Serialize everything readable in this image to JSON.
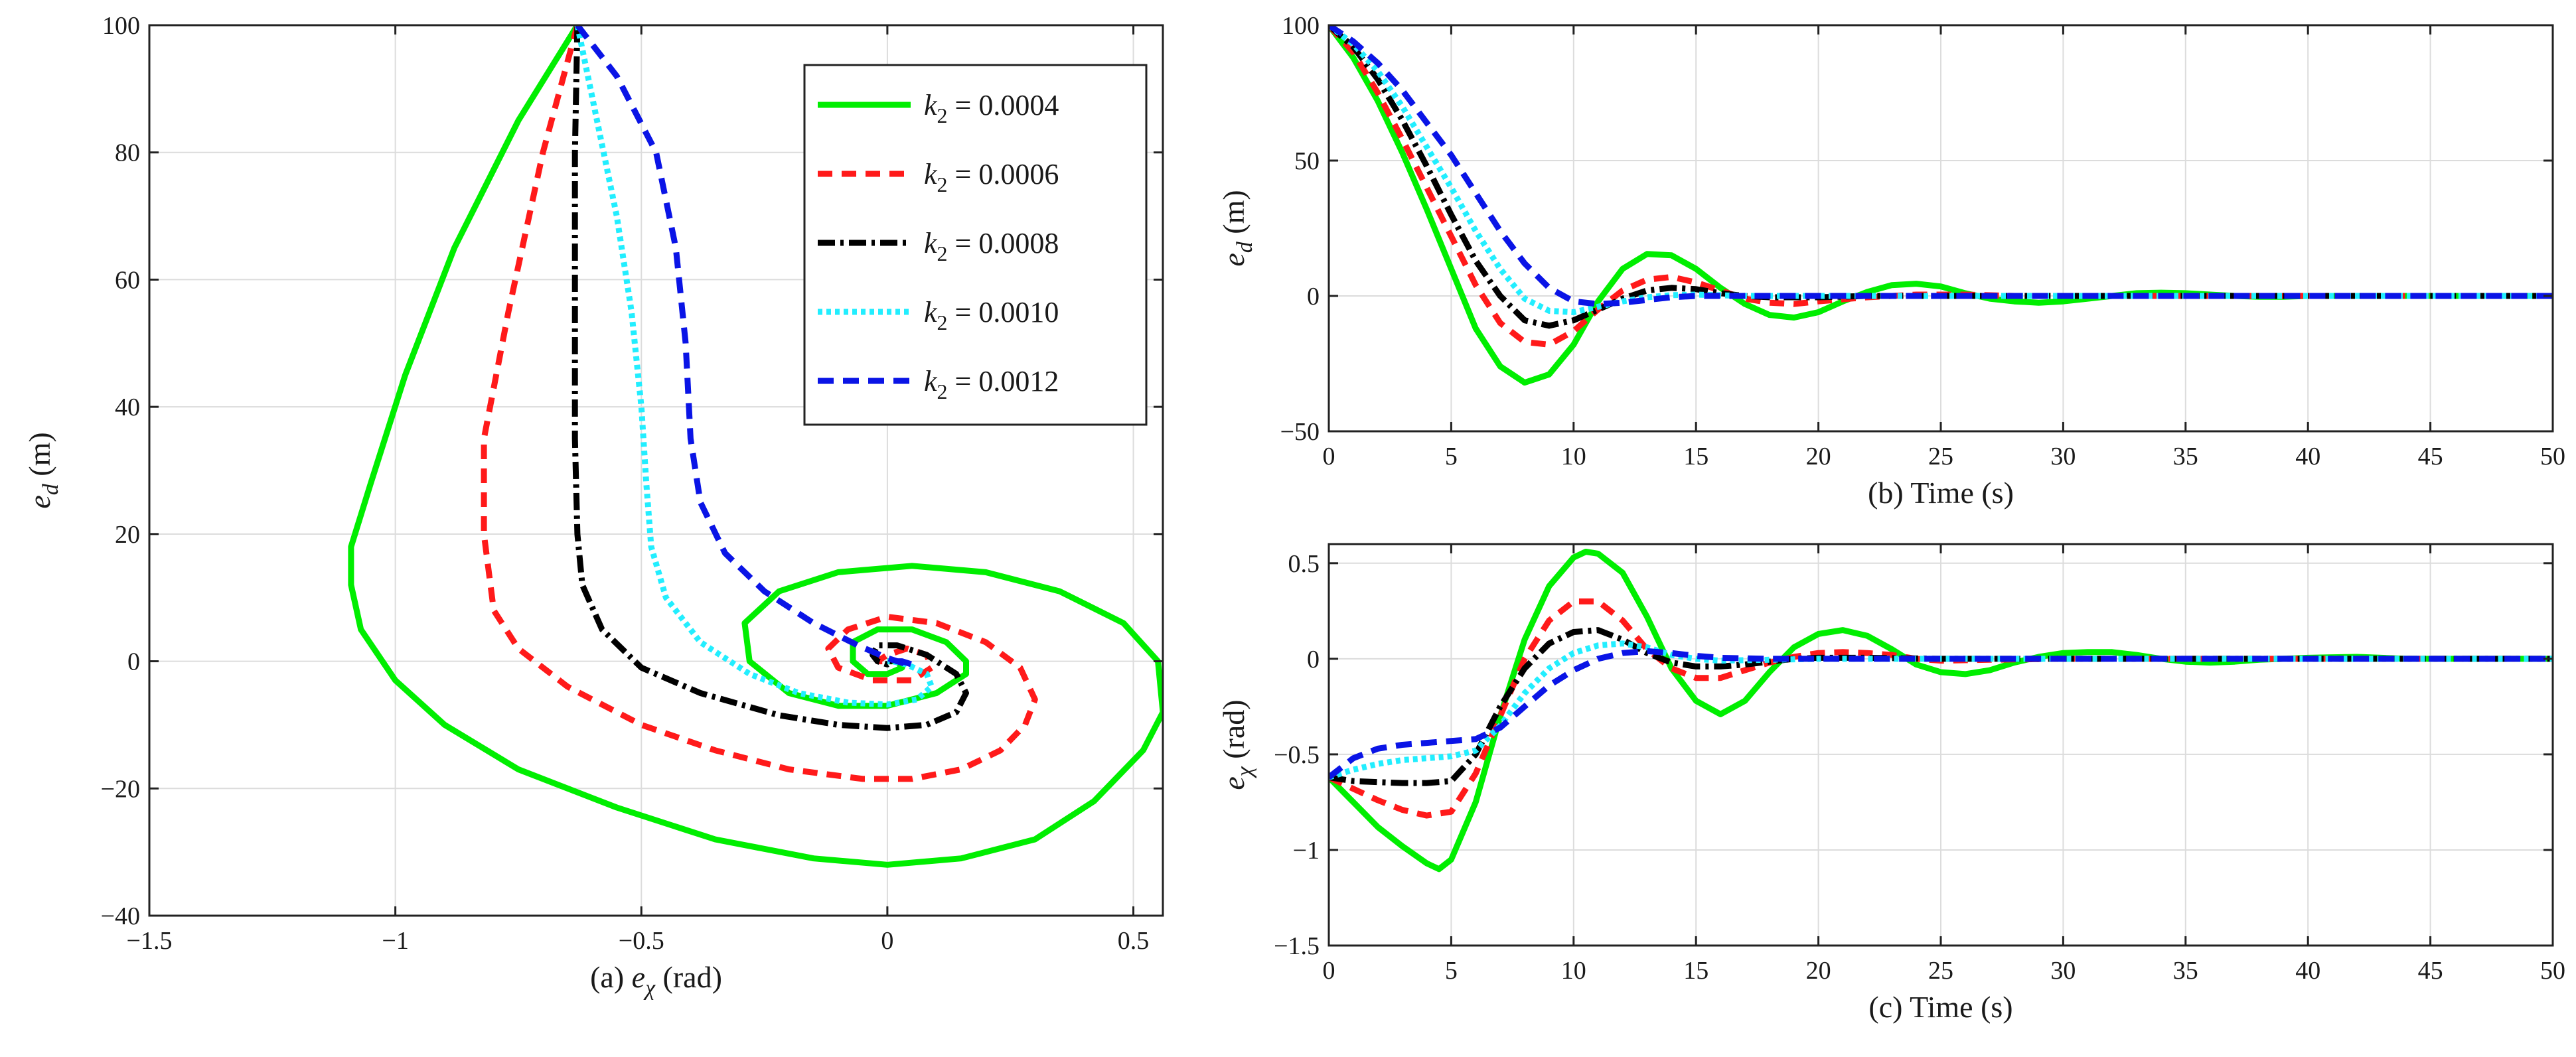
{
  "chart_data": [
    {
      "panel_id": "a",
      "type": "line",
      "caption_letter": "(a)",
      "xlabel_sym": "e",
      "xlabel_sub": "χ",
      "xlabel_unit": "(rad)",
      "ylabel_sym": "e",
      "ylabel_sub": "d",
      "ylabel_unit": "(m)",
      "xlim": [
        -1.5,
        0.56
      ],
      "ylim": [
        -40,
        100
      ],
      "x_ticks": [
        -1.5,
        -1,
        -0.5,
        0,
        0.5
      ],
      "x_tick_labels": [
        "−1.5",
        "−1",
        "−0.5",
        "0",
        "0.5"
      ],
      "y_ticks": [
        -40,
        -20,
        0,
        20,
        40,
        60,
        80,
        100
      ],
      "y_tick_labels": [
        "−40",
        "−20",
        "0",
        "20",
        "40",
        "60",
        "80",
        "100"
      ],
      "grid": true,
      "legend_position": "top-right",
      "series": [
        {
          "label": "k",
          "label_sub": "2",
          "value": "= 0.0004",
          "color": "#00ee00",
          "dash": "",
          "x": [
            -0.63,
            -0.75,
            -0.88,
            -0.98,
            -1.05,
            -1.09,
            -1.09,
            -1.07,
            -1.0,
            -0.9,
            -0.75,
            -0.55,
            -0.35,
            -0.15,
            0.0,
            0.15,
            0.3,
            0.42,
            0.52,
            0.56,
            0.55,
            0.48,
            0.35,
            0.2,
            0.05,
            -0.1,
            -0.22,
            -0.29,
            -0.28,
            -0.2,
            -0.1,
            0.0,
            0.1,
            0.16,
            0.16,
            0.12,
            0.05,
            -0.02,
            -0.07,
            -0.07,
            -0.04,
            0.0,
            0.03,
            0.02,
            0.0
          ],
          "y": [
            100,
            85,
            65,
            45,
            28,
            18,
            12,
            5,
            -3,
            -10,
            -17,
            -23,
            -28,
            -31,
            -32,
            -31,
            -28,
            -22,
            -14,
            -8,
            0,
            6,
            11,
            14,
            15,
            14,
            11,
            6,
            0,
            -5,
            -7,
            -7,
            -5,
            -2,
            0,
            3,
            5,
            5,
            3,
            0,
            -2,
            -2,
            -1,
            0,
            0
          ]
        },
        {
          "label": "k",
          "label_sub": "2",
          "value": "= 0.0006",
          "color": "#ff1a1a",
          "dash": "22,14",
          "x": [
            -0.63,
            -0.7,
            -0.77,
            -0.82,
            -0.82,
            -0.8,
            -0.75,
            -0.65,
            -0.5,
            -0.35,
            -0.2,
            -0.05,
            0.05,
            0.15,
            0.23,
            0.28,
            0.3,
            0.27,
            0.2,
            0.1,
            0.0,
            -0.08,
            -0.12,
            -0.1,
            -0.03,
            0.05,
            0.09,
            0.08,
            0.04,
            0.0,
            -0.02,
            -0.01,
            0.0
          ],
          "y": [
            100,
            80,
            55,
            35,
            20,
            8,
            2,
            -4,
            -10,
            -14,
            -17,
            -18.5,
            -18.5,
            -17,
            -14,
            -10,
            -6,
            -1,
            3,
            6,
            7,
            5,
            2,
            -1,
            -3,
            -3,
            -1,
            1,
            2,
            1,
            0,
            0,
            0
          ]
        },
        {
          "label": "k",
          "label_sub": "2",
          "value": "= 0.0008",
          "color": "#000000",
          "dash": "26,8,5,8",
          "x": [
            -0.63,
            -0.635,
            -0.635,
            -0.635,
            -0.63,
            -0.62,
            -0.58,
            -0.5,
            -0.38,
            -0.22,
            -0.1,
            0.0,
            0.08,
            0.14,
            0.16,
            0.14,
            0.08,
            0.02,
            -0.02,
            -0.03,
            -0.02,
            0.0,
            0.01,
            0.0
          ],
          "y": [
            100,
            80,
            55,
            35,
            20,
            12,
            5,
            -1,
            -5,
            -8.5,
            -10,
            -10.5,
            -10,
            -8,
            -5,
            -2,
            1,
            2.5,
            2.5,
            1,
            0,
            -0.5,
            0,
            0
          ]
        },
        {
          "label": "k",
          "label_sub": "2",
          "value": "= 0.0010",
          "color": "#22eeff",
          "dash": "7,6",
          "x": [
            -0.63,
            -0.59,
            -0.55,
            -0.52,
            -0.5,
            -0.49,
            -0.48,
            -0.45,
            -0.38,
            -0.28,
            -0.18,
            -0.08,
            0.0,
            0.06,
            0.09,
            0.08,
            0.04,
            0.01,
            0.0
          ],
          "y": [
            100,
            85,
            70,
            55,
            40,
            28,
            18,
            10,
            3,
            -2,
            -5,
            -6.5,
            -6.8,
            -6,
            -4,
            -2,
            -0.5,
            0,
            0
          ]
        },
        {
          "label": "k",
          "label_sub": "2",
          "value": "= 0.0012",
          "color": "#0a14e6",
          "dash": "24,14",
          "x": [
            -0.63,
            -0.55,
            -0.47,
            -0.43,
            -0.41,
            -0.4,
            -0.38,
            -0.33,
            -0.25,
            -0.15,
            -0.06,
            0.0,
            0.04,
            0.05,
            0.03,
            0.01,
            0.0
          ],
          "y": [
            100,
            92,
            80,
            65,
            50,
            35,
            25,
            17,
            11,
            6,
            2.5,
            0.5,
            -0.5,
            -0.5,
            0,
            0,
            0
          ]
        }
      ]
    },
    {
      "panel_id": "b",
      "type": "line",
      "caption_letter": "(b)",
      "xlabel": "Time  (s)",
      "ylabel_sym": "e",
      "ylabel_sub": "d",
      "ylabel_unit": "(m)",
      "xlim": [
        0,
        50
      ],
      "ylim": [
        -50,
        100
      ],
      "x_ticks": [
        0,
        5,
        10,
        15,
        20,
        25,
        30,
        35,
        40,
        45,
        50
      ],
      "x_tick_labels": [
        "0",
        "5",
        "10",
        "15",
        "20",
        "25",
        "30",
        "35",
        "40",
        "45",
        "50"
      ],
      "y_ticks": [
        -50,
        0,
        50,
        100
      ],
      "y_tick_labels": [
        "−50",
        "0",
        "50",
        "100"
      ],
      "grid": true,
      "series": [
        {
          "color": "#00ee00",
          "dash": "",
          "x": [
            0,
            1,
            2,
            3,
            4,
            5,
            6,
            7,
            8,
            9,
            10,
            11,
            12,
            13,
            14,
            15,
            16,
            17,
            18,
            19,
            20,
            21,
            22,
            23,
            24,
            25,
            26,
            27,
            28,
            29,
            30,
            31,
            32,
            33,
            34,
            35,
            36,
            37,
            38,
            39,
            40,
            42,
            45,
            50
          ],
          "y": [
            100,
            88,
            72,
            53,
            32,
            10,
            -12,
            -26,
            -32,
            -29,
            -18,
            -2,
            10,
            15.5,
            15,
            10,
            3,
            -3,
            -7,
            -8,
            -6,
            -2,
            1.5,
            4,
            4.5,
            3.5,
            1,
            -1,
            -2,
            -2.5,
            -2,
            -1,
            0,
            1,
            1.2,
            1,
            0.5,
            0,
            -0.3,
            -0.3,
            0,
            0,
            0,
            0
          ]
        },
        {
          "color": "#ff1a1a",
          "dash": "22,14",
          "x": [
            0,
            1,
            2,
            3,
            4,
            5,
            6,
            7,
            8,
            9,
            10,
            11,
            12,
            13,
            14,
            15,
            16,
            17,
            18,
            19,
            20,
            22,
            24,
            26,
            28,
            30,
            35,
            40,
            50
          ],
          "y": [
            100,
            90,
            75,
            58,
            40,
            22,
            4,
            -10,
            -17,
            -18,
            -13,
            -5,
            2,
            6,
            7,
            5,
            2,
            -1,
            -2.5,
            -3,
            -2,
            -0.5,
            0.5,
            0.5,
            0,
            0,
            0,
            0,
            0
          ]
        },
        {
          "color": "#000000",
          "dash": "26,8,5,8",
          "x": [
            0,
            1,
            2,
            3,
            4,
            5,
            6,
            7,
            8,
            9,
            10,
            11,
            12,
            13,
            14,
            15,
            16,
            17,
            18,
            20,
            22,
            25,
            30,
            40,
            50
          ],
          "y": [
            100,
            92,
            80,
            65,
            48,
            30,
            13,
            0,
            -9,
            -11,
            -9,
            -5,
            -1,
            2,
            3,
            2.5,
            1,
            0,
            -0.5,
            -0.5,
            0,
            0,
            0,
            0,
            0
          ]
        },
        {
          "color": "#22eeff",
          "dash": "7,6",
          "x": [
            0,
            1,
            2,
            3,
            4,
            5,
            6,
            7,
            8,
            9,
            10,
            11,
            12,
            13,
            14,
            15,
            17,
            20,
            25,
            30,
            40,
            50
          ],
          "y": [
            100,
            93,
            83,
            70,
            55,
            40,
            24,
            10,
            -1,
            -5.5,
            -6,
            -4,
            -2,
            -0.5,
            0.3,
            0.5,
            0,
            0,
            0,
            0,
            0,
            0
          ]
        },
        {
          "color": "#0a14e6",
          "dash": "24,14",
          "x": [
            0,
            1,
            2,
            3,
            4,
            5,
            6,
            7,
            8,
            9,
            10,
            11,
            12,
            13,
            14,
            15,
            17,
            20,
            25,
            30,
            40,
            50
          ],
          "y": [
            100,
            94,
            86,
            76,
            64,
            52,
            38,
            24,
            12,
            3,
            -2,
            -3,
            -2.5,
            -1.5,
            -0.5,
            0,
            0,
            0,
            0,
            0,
            0,
            0
          ]
        }
      ]
    },
    {
      "panel_id": "c",
      "type": "line",
      "caption_letter": "(c)",
      "xlabel": "Time  (s)",
      "ylabel_sym": "e",
      "ylabel_sub": "χ",
      "ylabel_unit": "(rad)",
      "xlim": [
        0,
        50
      ],
      "ylim": [
        -1.5,
        0.6
      ],
      "x_ticks": [
        0,
        5,
        10,
        15,
        20,
        25,
        30,
        35,
        40,
        45,
        50
      ],
      "x_tick_labels": [
        "0",
        "5",
        "10",
        "15",
        "20",
        "25",
        "30",
        "35",
        "40",
        "45",
        "50"
      ],
      "y_ticks": [
        -1.5,
        -1,
        -0.5,
        0,
        0.5
      ],
      "y_tick_labels": [
        "−1.5",
        "−1",
        "−0.5",
        "0",
        "0.5"
      ],
      "grid": true,
      "series": [
        {
          "color": "#00ee00",
          "dash": "",
          "x": [
            0,
            1,
            2,
            3,
            4,
            4.5,
            5,
            6,
            7,
            8,
            9,
            10,
            10.5,
            11,
            12,
            13,
            14,
            15,
            16,
            17,
            18,
            19,
            20,
            21,
            22,
            23,
            24,
            25,
            26,
            27,
            28,
            29,
            30,
            31,
            32,
            33,
            34,
            35,
            36,
            37,
            38,
            39,
            40,
            41,
            42,
            43,
            44,
            45,
            50
          ],
          "y": [
            -0.62,
            -0.75,
            -0.88,
            -0.98,
            -1.07,
            -1.1,
            -1.05,
            -0.75,
            -0.3,
            0.1,
            0.38,
            0.53,
            0.56,
            0.55,
            0.45,
            0.22,
            -0.05,
            -0.22,
            -0.29,
            -0.22,
            -0.07,
            0.06,
            0.13,
            0.15,
            0.12,
            0.05,
            -0.03,
            -0.07,
            -0.08,
            -0.06,
            -0.02,
            0.01,
            0.03,
            0.035,
            0.035,
            0.02,
            0.0,
            -0.015,
            -0.02,
            -0.015,
            -0.005,
            0.0,
            0.005,
            0.008,
            0.01,
            0.005,
            0.0,
            0.0,
            0.0
          ]
        },
        {
          "color": "#ff1a1a",
          "dash": "22,14",
          "x": [
            0,
            1,
            2,
            3,
            4,
            5,
            6,
            7,
            8,
            9,
            10,
            11,
            12,
            13,
            14,
            15,
            16,
            17,
            18,
            19,
            20,
            21,
            22,
            23,
            24,
            25,
            27,
            30,
            35,
            40,
            50
          ],
          "y": [
            -0.62,
            -0.68,
            -0.74,
            -0.79,
            -0.82,
            -0.8,
            -0.6,
            -0.3,
            0.0,
            0.2,
            0.3,
            0.3,
            0.2,
            0.05,
            -0.05,
            -0.1,
            -0.1,
            -0.06,
            -0.02,
            0.01,
            0.03,
            0.035,
            0.03,
            0.02,
            0.0,
            -0.01,
            -0.005,
            0.0,
            0.0,
            0.0,
            0.0
          ]
        },
        {
          "color": "#000000",
          "dash": "26,8,5,8",
          "x": [
            0,
            1,
            2,
            3,
            4,
            5,
            6,
            7,
            8,
            9,
            10,
            11,
            12,
            13,
            14,
            15,
            16,
            17,
            18,
            19,
            20,
            22,
            25,
            30,
            40,
            50
          ],
          "y": [
            -0.62,
            -0.64,
            -0.645,
            -0.65,
            -0.65,
            -0.64,
            -0.5,
            -0.25,
            -0.05,
            0.08,
            0.14,
            0.15,
            0.1,
            0.03,
            -0.02,
            -0.04,
            -0.04,
            -0.03,
            -0.015,
            0.0,
            0.005,
            0.005,
            0.0,
            0.0,
            0.0,
            0.0
          ]
        },
        {
          "color": "#22eeff",
          "dash": "7,6",
          "x": [
            0,
            1,
            2,
            3,
            4,
            5,
            6,
            7,
            8,
            9,
            10,
            11,
            12,
            13,
            14,
            15,
            16,
            18,
            20,
            25,
            30,
            40,
            50
          ],
          "y": [
            -0.62,
            -0.58,
            -0.55,
            -0.53,
            -0.52,
            -0.51,
            -0.48,
            -0.35,
            -0.18,
            -0.05,
            0.03,
            0.07,
            0.08,
            0.06,
            0.02,
            0.0,
            -0.01,
            -0.005,
            0.0,
            0.0,
            0.0,
            0.0,
            0.0
          ]
        },
        {
          "color": "#0a14e6",
          "dash": "24,14",
          "x": [
            0,
            1,
            2,
            3,
            4,
            5,
            6,
            7,
            8,
            9,
            10,
            11,
            12,
            13,
            14,
            15,
            16,
            18,
            20,
            25,
            30,
            40,
            50
          ],
          "y": [
            -0.62,
            -0.52,
            -0.47,
            -0.45,
            -0.44,
            -0.43,
            -0.42,
            -0.36,
            -0.25,
            -0.14,
            -0.06,
            0.0,
            0.03,
            0.04,
            0.03,
            0.015,
            0.005,
            0.0,
            0.0,
            0.0,
            0.0,
            0.0,
            0.0
          ]
        }
      ]
    }
  ]
}
